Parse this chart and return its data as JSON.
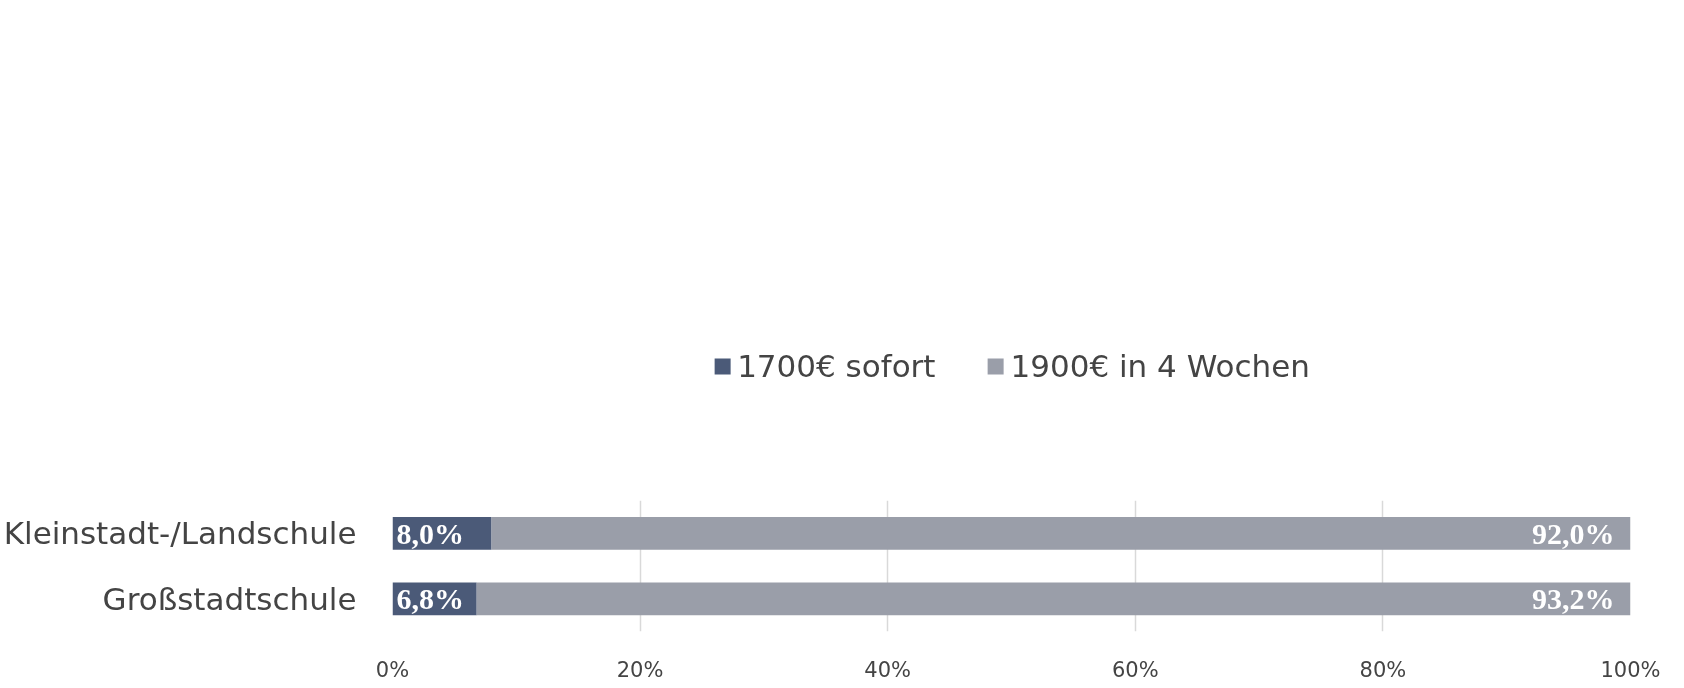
{
  "chart_data": {
    "type": "bar",
    "orientation": "horizontal",
    "stacked": true,
    "categories": [
      "Kleinstadt-/Landschule",
      "Großstadtschule"
    ],
    "series": [
      {
        "name": "1700€ sofort",
        "color": "#4b5a78",
        "values": [
          8.0,
          6.8
        ],
        "value_labels": [
          "8,0%",
          "6,8%"
        ]
      },
      {
        "name": "1900€ in 4 Wochen",
        "color": "#9a9ea9",
        "values": [
          92.0,
          93.2
        ],
        "value_labels": [
          "92,0%",
          "93,2%"
        ]
      }
    ],
    "xlim": [
      0,
      100
    ],
    "xticks": [
      {
        "value": 0,
        "label": "0%"
      },
      {
        "value": 20,
        "label": "20%"
      },
      {
        "value": 40,
        "label": "40%"
      },
      {
        "value": 60,
        "label": "60%"
      },
      {
        "value": 80,
        "label": "80%"
      },
      {
        "value": 100,
        "label": "100%"
      }
    ],
    "grid": "x",
    "legend": "top"
  }
}
